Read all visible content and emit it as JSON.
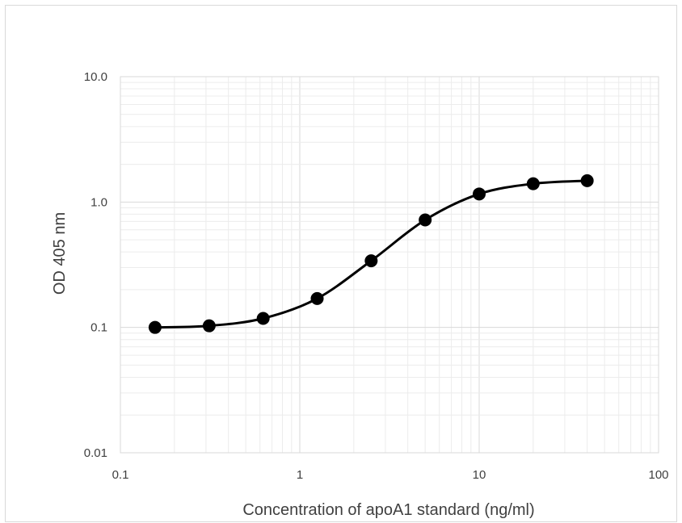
{
  "chart_data": {
    "type": "scatter",
    "title": "",
    "xlabel": "Concentration of apoA1 standard (ng/ml)",
    "ylabel": "OD 405 nm",
    "xscale": "log",
    "yscale": "log",
    "xlim": [
      0.1,
      100
    ],
    "ylim": [
      0.01,
      10
    ],
    "x_ticks": [
      "0.1",
      "1",
      "10",
      "100"
    ],
    "y_ticks": [
      "0.01",
      "0.1",
      "1.0",
      "10.0"
    ],
    "grid": "major and minor",
    "legend": "none",
    "series": [
      {
        "x": [
          0.156,
          0.3125,
          0.625,
          1.25,
          2.5,
          5,
          10,
          20,
          40
        ],
        "y": [
          0.1,
          0.103,
          0.118,
          0.17,
          0.34,
          0.72,
          1.16,
          1.4,
          1.48
        ],
        "marker": "circle",
        "line": "smooth",
        "color": "#000000"
      }
    ],
    "colors": {
      "major_grid": "#d9d9d9",
      "minor_grid": "#ececec",
      "frame": "#d9d9d9",
      "text": "#404040"
    }
  }
}
